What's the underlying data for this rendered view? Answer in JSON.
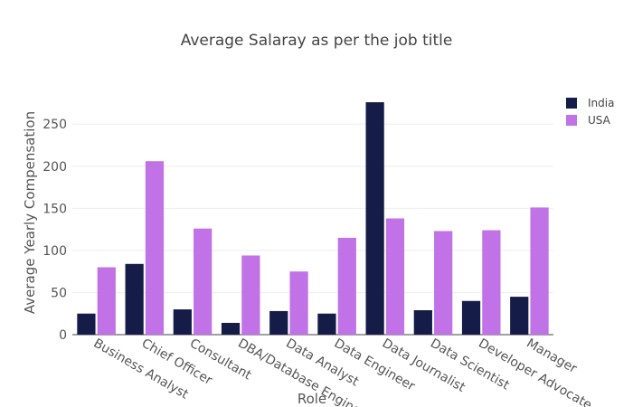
{
  "chart_data": {
    "type": "bar",
    "title": "Average Salaray as per the job title",
    "x_label": "Role",
    "y_label": "Average Yearly Compensation",
    "categories": [
      "Business Analyst",
      "Chief Officer",
      "Consultant",
      "DBA/Database Engineer",
      "Data Analyst",
      "Data Engineer",
      "Data Journalist",
      "Data Scientist",
      "Developer Advocate",
      "Manager"
    ],
    "series": [
      {
        "name": "India",
        "color": "#141c47",
        "values": [
          25,
          84,
          30,
          14,
          28,
          25,
          276,
          29,
          40,
          45
        ]
      },
      {
        "name": "USA",
        "color": "#c072e6",
        "values": [
          80,
          206,
          126,
          94,
          75,
          115,
          138,
          123,
          124,
          151
        ]
      }
    ],
    "ylim": [
      0,
      290
    ],
    "yticks": [
      0,
      50,
      100,
      150,
      200,
      250
    ],
    "grid": true,
    "legend": "top-right"
  }
}
